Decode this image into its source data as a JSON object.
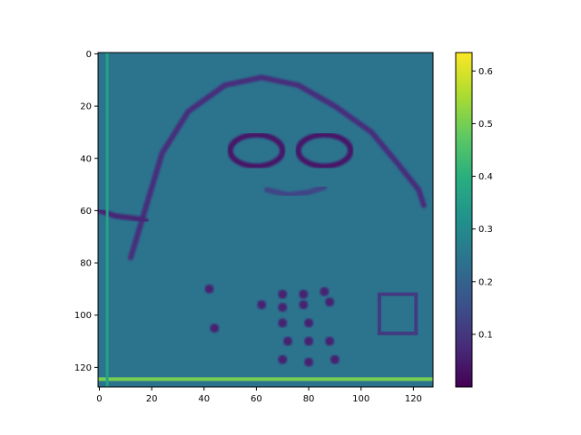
{
  "chart_data": {
    "type": "heatmap",
    "title": "",
    "xlabel": "",
    "ylabel": "",
    "colormap": "viridis",
    "background_value": 0.24,
    "image_size": [
      128,
      128
    ],
    "xlim": [
      0,
      127
    ],
    "ylim": [
      127,
      0
    ],
    "x_ticks": [
      0,
      20,
      40,
      60,
      80,
      100,
      120
    ],
    "y_ticks": [
      0,
      20,
      40,
      60,
      80,
      100,
      120
    ],
    "x_tick_labels": [
      "0",
      "20",
      "40",
      "60",
      "80",
      "100",
      "120"
    ],
    "y_tick_labels": [
      "0",
      "20",
      "40",
      "60",
      "80",
      "100",
      "120"
    ],
    "colorbar": {
      "range": [
        0.0,
        0.635
      ],
      "ticks": [
        0.1,
        0.2,
        0.3,
        0.4,
        0.5,
        0.6
      ],
      "tick_labels": [
        "0.1",
        "0.2",
        "0.3",
        "0.4",
        "0.5",
        "0.6"
      ]
    },
    "features": [
      {
        "name": "head-outline",
        "kind": "curve",
        "value": 0.08,
        "points": [
          [
            12,
            78
          ],
          [
            18,
            58
          ],
          [
            24,
            38
          ],
          [
            34,
            22
          ],
          [
            48,
            12
          ],
          [
            62,
            9
          ],
          [
            76,
            12
          ],
          [
            90,
            20
          ],
          [
            104,
            30
          ],
          [
            114,
            42
          ],
          [
            122,
            52
          ],
          [
            124,
            58
          ]
        ]
      },
      {
        "name": "left-lens",
        "kind": "ellipse",
        "value": 0.04,
        "cx": 60,
        "cy": 37,
        "rx": 10,
        "ry": 6
      },
      {
        "name": "right-lens",
        "kind": "ellipse",
        "value": 0.04,
        "cx": 86,
        "cy": 37,
        "rx": 10,
        "ry": 6
      },
      {
        "name": "mouth",
        "kind": "curve",
        "value": 0.13,
        "points": [
          [
            64,
            52
          ],
          [
            72,
            54
          ],
          [
            80,
            53
          ],
          [
            86,
            51
          ]
        ]
      },
      {
        "name": "left-shoulder-streak",
        "kind": "curve",
        "value": 0.07,
        "points": [
          [
            0,
            60
          ],
          [
            6,
            62
          ],
          [
            14,
            63
          ],
          [
            18,
            64
          ]
        ]
      },
      {
        "name": "button-grid",
        "kind": "dots",
        "value": 0.06,
        "points": [
          [
            62,
            96
          ],
          [
            70,
            92
          ],
          [
            78,
            92
          ],
          [
            86,
            91
          ],
          [
            70,
            97
          ],
          [
            78,
            96
          ],
          [
            88,
            95
          ],
          [
            70,
            103
          ],
          [
            80,
            103
          ],
          [
            72,
            110
          ],
          [
            80,
            110
          ],
          [
            88,
            110
          ],
          [
            70,
            117
          ],
          [
            80,
            118
          ],
          [
            90,
            117
          ],
          [
            42,
            90
          ],
          [
            44,
            105
          ]
        ]
      },
      {
        "name": "square",
        "kind": "rect",
        "value": 0.11,
        "x0": 107,
        "y0": 92,
        "x1": 121,
        "y1": 107
      },
      {
        "name": "bottom-bright-line",
        "kind": "hline",
        "value": 0.5,
        "y": 124.5
      },
      {
        "name": "left-bright-line",
        "kind": "vline",
        "value": 0.36,
        "x": 3
      }
    ]
  }
}
